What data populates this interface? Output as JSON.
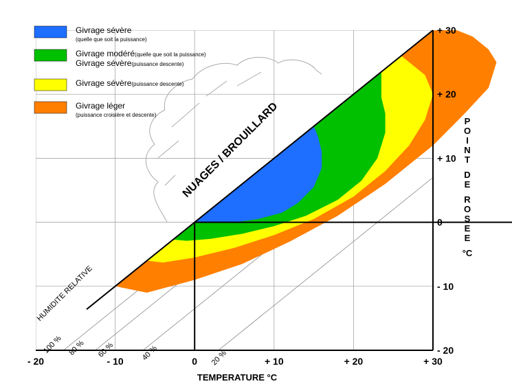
{
  "chart_data": {
    "type": "area",
    "xlabel": "TEMPERATURE °C",
    "ylabel_letters": [
      "P",
      "O",
      "I",
      "N",
      "T",
      "",
      "D",
      "E",
      "",
      "R",
      "O",
      "S",
      "E",
      "E",
      "",
      "°C"
    ],
    "xlim": [
      -20,
      30
    ],
    "ylim": [
      -20,
      30
    ],
    "x_ticks": [
      -20,
      -10,
      0,
      10,
      20,
      30
    ],
    "y_ticks": [
      30,
      20,
      10,
      0,
      -10,
      -20
    ],
    "x_tick_labels": [
      "- 20",
      "- 10",
      "0",
      "+ 10",
      "+ 20",
      "+ 30"
    ],
    "y_tick_labels": [
      "+ 30",
      "+ 20",
      "+ 10",
      "0",
      "- 10",
      "- 20"
    ],
    "grid": true,
    "region_label": "NUAGES / BROUILLARD",
    "diagonal_label": "HUMIDITE RELATIVE",
    "relative_humidity_lines": [
      {
        "label": "100 %",
        "offset": 0
      },
      {
        "label": "80 %",
        "offset": -3.5
      },
      {
        "label": "60 %",
        "offset": -7.5
      },
      {
        "label": "40 %",
        "offset": -13.5
      },
      {
        "label": "20 %",
        "offset": -23
      }
    ],
    "zones": [
      {
        "name": "Givrage léger",
        "color": "#ff7f00",
        "boundary": [
          [
            -14,
            -14
          ],
          [
            -10,
            -10
          ],
          [
            -6,
            -11
          ],
          [
            0,
            -9
          ],
          [
            6,
            -6.5
          ],
          [
            12,
            -3
          ],
          [
            18,
            1
          ],
          [
            24,
            6
          ],
          [
            30,
            12
          ],
          [
            34,
            17
          ],
          [
            37,
            21
          ],
          [
            38,
            25
          ],
          [
            37,
            27
          ],
          [
            35,
            29
          ],
          [
            33,
            30
          ],
          [
            30,
            30
          ]
        ]
      },
      {
        "name": "Givrage sévère (puissance descente)",
        "color": "#ffff00",
        "boundary": [
          [
            -6,
            -6
          ],
          [
            -4,
            -6.3
          ],
          [
            0,
            -5.5
          ],
          [
            5,
            -4
          ],
          [
            10,
            -2
          ],
          [
            15,
            0.5
          ],
          [
            20,
            4
          ],
          [
            24,
            8
          ],
          [
            27,
            12
          ],
          [
            29,
            16
          ],
          [
            30,
            20
          ],
          [
            29,
            23
          ],
          [
            26,
            26
          ],
          [
            26,
            26
          ]
        ]
      },
      {
        "name": "Givrage modéré / sévère",
        "color": "#00c000",
        "boundary": [
          [
            -2.7,
            -2.7
          ],
          [
            -1,
            -2.9
          ],
          [
            2,
            -2.6
          ],
          [
            6,
            -1.8
          ],
          [
            10,
            -0.6
          ],
          [
            14,
            1
          ],
          [
            18,
            3.5
          ],
          [
            21,
            6.5
          ],
          [
            23,
            10
          ],
          [
            24,
            14
          ],
          [
            24,
            17
          ],
          [
            23.5,
            19.5
          ],
          [
            23.5,
            23.5
          ]
        ]
      },
      {
        "name": "Givrage sévère (quelle que soit la puissance)",
        "color": "#1e6eff",
        "boundary": [
          [
            0,
            0
          ],
          [
            2,
            -0.1
          ],
          [
            5,
            0
          ],
          [
            8,
            0.5
          ],
          [
            11,
            1.5
          ],
          [
            13,
            3
          ],
          [
            15,
            5.5
          ],
          [
            16,
            8.5
          ],
          [
            16,
            11
          ],
          [
            15.5,
            13.5
          ],
          [
            15,
            15
          ],
          [
            15,
            15
          ]
        ]
      }
    ],
    "example_path": {
      "temperature": 0,
      "dew_point": 0,
      "x_right": 40
    },
    "legend": [
      {
        "label": "Givrage sévère",
        "sub": "(quelle que soit la puissance)",
        "sub_inline": false,
        "color": "#1e6eff"
      },
      {
        "label": "Givrage modéré",
        "sub": "(quelle que soit la puissance)",
        "sub_inline": true,
        "label2": "Givrage sévère",
        "sub2": "(puissance descente)",
        "color": "#00c000"
      },
      {
        "label": "Givrage sévère",
        "sub": "(puissance descente)",
        "sub_inline": true,
        "color": "#ffff00"
      },
      {
        "label": "Givrage léger",
        "sub": "(puissance croisière et descente)",
        "sub_inline": false,
        "color": "#ff7f00"
      }
    ]
  }
}
